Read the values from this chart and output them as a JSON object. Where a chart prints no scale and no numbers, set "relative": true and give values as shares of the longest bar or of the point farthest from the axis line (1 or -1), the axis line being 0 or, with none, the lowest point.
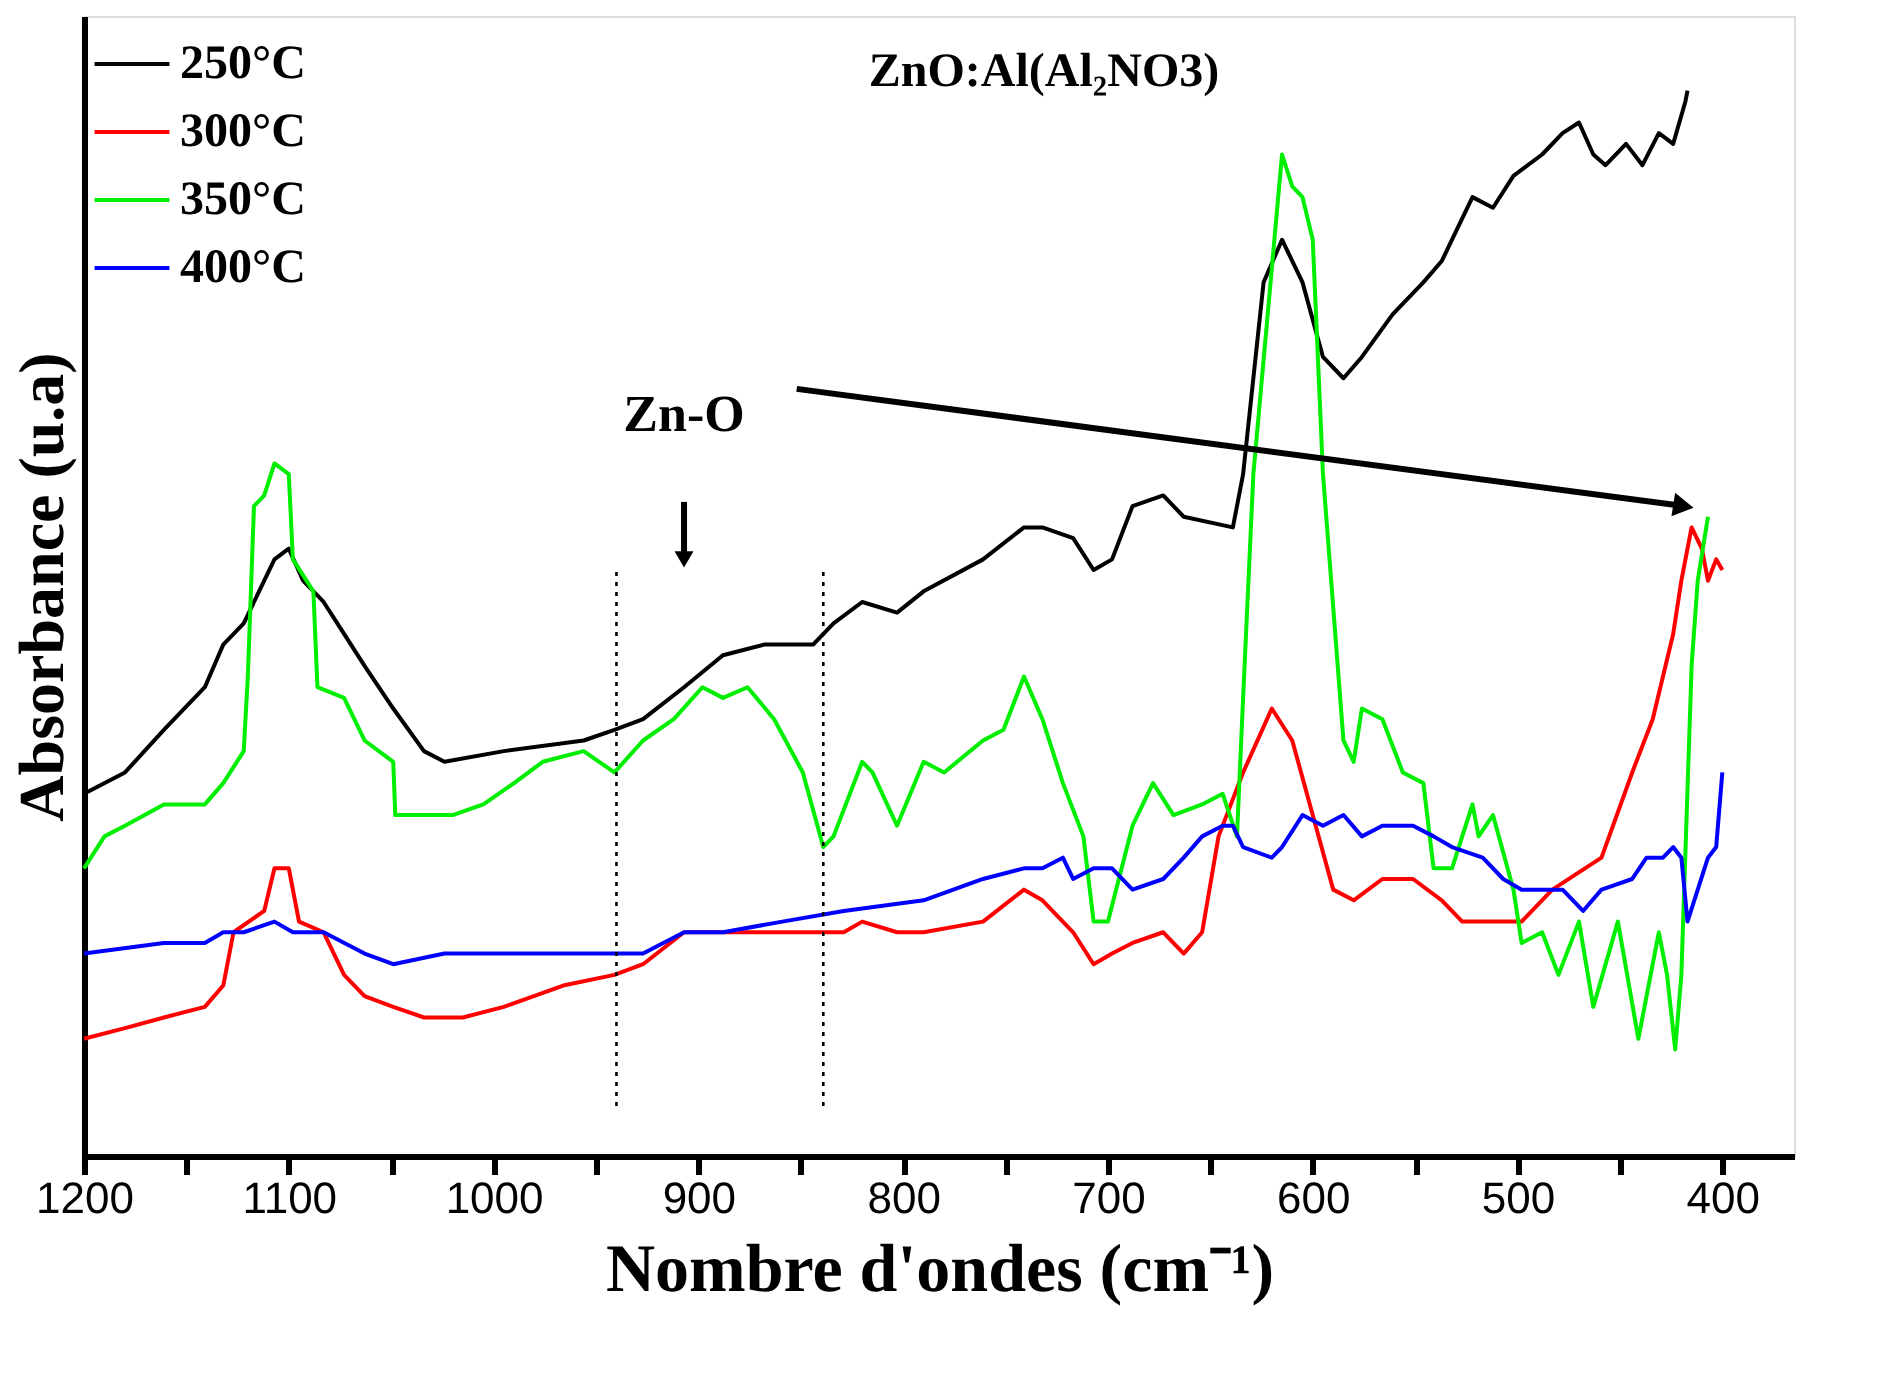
{
  "chart_data": {
    "type": "line",
    "title": "ZnO:Al(Al₂NO3)",
    "xlabel": "Nombre d'ondes (cm⁻¹)",
    "ylabel": "Absorbance (u.a)",
    "relative": true,
    "tick_labels": "x",
    "legend": "top left",
    "grid": false,
    "marker": "none",
    "line_style": "solid",
    "xlim": [
      1200,
      365
    ],
    "xticks": [
      1200,
      {
        "value": 1150,
        "label": null
      },
      1100,
      {
        "value": 1050,
        "label": null
      },
      1000,
      {
        "value": 950,
        "label": null
      },
      900,
      {
        "value": 850,
        "label": null
      },
      800,
      {
        "value": 750,
        "label": null
      },
      700,
      {
        "value": 650,
        "label": null
      },
      600,
      {
        "value": 550,
        "label": null
      },
      500,
      {
        "value": 450,
        "label": null
      },
      400
    ],
    "annotations": [
      {
        "text": "Zn-O",
        "x": 907,
        "y": 0.56
      }
    ],
    "ref_lines": [
      {
        "axis": "x",
        "value": 940,
        "label": null,
        "line_style": "dotted",
        "color": "#000000"
      },
      {
        "axis": "x",
        "value": 839,
        "label": null,
        "line_style": "dotted",
        "color": "#000000"
      }
    ],
    "series": [
      {
        "name": "250°C",
        "color": "#000000",
        "x": [
          1200,
          1180,
          1161,
          1141,
          1132,
          1122,
          1112,
          1107,
          1100,
          1093,
          1083,
          1073,
          1063,
          1049,
          1034,
          1024,
          995,
          956,
          941,
          927,
          907,
          888,
          868,
          844,
          834,
          820,
          803,
          790,
          761,
          741,
          732,
          717,
          707,
          698,
          688,
          673,
          663,
          639,
          634,
          629,
          624,
          615,
          605,
          595,
          585,
          576,
          561,
          546,
          537,
          527,
          522,
          512,
          502,
          488,
          478,
          470,
          463,
          457,
          447,
          439,
          431,
          424,
          418,
          417
        ],
        "values": [
          0.34,
          0.36,
          0.4,
          0.44,
          0.48,
          0.5,
          0.54,
          0.56,
          0.57,
          0.54,
          0.52,
          0.49,
          0.46,
          0.42,
          0.38,
          0.37,
          0.38,
          0.39,
          0.4,
          0.41,
          0.44,
          0.47,
          0.48,
          0.48,
          0.5,
          0.52,
          0.51,
          0.53,
          0.56,
          0.59,
          0.59,
          0.58,
          0.55,
          0.56,
          0.61,
          0.62,
          0.6,
          0.59,
          0.64,
          0.73,
          0.82,
          0.86,
          0.82,
          0.75,
          0.73,
          0.75,
          0.79,
          0.82,
          0.84,
          0.88,
          0.9,
          0.89,
          0.92,
          0.94,
          0.96,
          0.97,
          0.94,
          0.93,
          0.95,
          0.93,
          0.96,
          0.95,
          0.99,
          1.0
        ]
      },
      {
        "name": "300°C",
        "color": "#ff0000",
        "x": [
          1200,
          1180,
          1161,
          1141,
          1132,
          1127,
          1112,
          1107,
          1100,
          1095,
          1083,
          1073,
          1063,
          1049,
          1034,
          1015,
          995,
          966,
          941,
          927,
          907,
          888,
          859,
          844,
          829,
          820,
          803,
          790,
          761,
          741,
          732,
          717,
          707,
          698,
          688,
          673,
          663,
          654,
          646,
          634,
          620,
          610,
          600,
          590,
          580,
          566,
          551,
          537,
          527,
          512,
          498,
          483,
          459,
          444,
          434,
          424,
          420,
          415,
          410,
          407,
          403,
          400
        ],
        "values": [
          0.11,
          0.12,
          0.13,
          0.14,
          0.16,
          0.21,
          0.23,
          0.27,
          0.27,
          0.22,
          0.21,
          0.17,
          0.15,
          0.14,
          0.13,
          0.13,
          0.14,
          0.16,
          0.17,
          0.18,
          0.21,
          0.21,
          0.21,
          0.21,
          0.21,
          0.22,
          0.21,
          0.21,
          0.22,
          0.25,
          0.24,
          0.21,
          0.18,
          0.19,
          0.2,
          0.21,
          0.19,
          0.21,
          0.3,
          0.36,
          0.42,
          0.39,
          0.32,
          0.25,
          0.24,
          0.26,
          0.26,
          0.24,
          0.22,
          0.22,
          0.22,
          0.25,
          0.28,
          0.36,
          0.41,
          0.49,
          0.54,
          0.59,
          0.57,
          0.54,
          0.56,
          0.55
        ]
      },
      {
        "name": "350°C",
        "color": "#00ee00",
        "x": [
          1200,
          1190,
          1180,
          1161,
          1141,
          1132,
          1122,
          1120,
          1117,
          1112,
          1107,
          1100,
          1098,
          1088,
          1086,
          1073,
          1063,
          1049,
          1048,
          1034,
          1020,
          1005,
          990,
          976,
          956,
          941,
          927,
          912,
          898,
          888,
          876,
          863,
          849,
          839,
          834,
          820,
          815,
          803,
          790,
          780,
          761,
          751,
          741,
          732,
          722,
          712,
          707,
          704,
          700,
          688,
          678,
          668,
          654,
          644,
          637,
          634,
          629,
          615,
          610,
          605,
          600,
          595,
          585,
          580,
          576,
          566,
          556,
          546,
          541,
          532,
          522,
          519,
          512,
          502,
          498,
          488,
          480,
          470,
          463,
          451,
          441,
          431,
          427,
          423,
          420,
          415,
          412,
          407
        ],
        "values": [
          0.27,
          0.3,
          0.31,
          0.33,
          0.33,
          0.35,
          0.38,
          0.45,
          0.61,
          0.62,
          0.65,
          0.64,
          0.56,
          0.53,
          0.44,
          0.43,
          0.39,
          0.37,
          0.32,
          0.32,
          0.32,
          0.33,
          0.35,
          0.37,
          0.38,
          0.36,
          0.39,
          0.41,
          0.44,
          0.43,
          0.44,
          0.41,
          0.36,
          0.29,
          0.3,
          0.37,
          0.36,
          0.31,
          0.37,
          0.36,
          0.39,
          0.4,
          0.45,
          0.41,
          0.35,
          0.3,
          0.22,
          0.22,
          0.22,
          0.31,
          0.35,
          0.32,
          0.33,
          0.34,
          0.3,
          0.43,
          0.64,
          0.94,
          0.91,
          0.9,
          0.86,
          0.64,
          0.39,
          0.37,
          0.42,
          0.41,
          0.36,
          0.35,
          0.27,
          0.27,
          0.33,
          0.3,
          0.32,
          0.25,
          0.2,
          0.21,
          0.17,
          0.22,
          0.14,
          0.22,
          0.11,
          0.21,
          0.17,
          0.1,
          0.17,
          0.46,
          0.54,
          0.6
        ]
      },
      {
        "name": "400°C",
        "color": "#0000ff",
        "x": [
          1200,
          1161,
          1141,
          1132,
          1122,
          1107,
          1098,
          1083,
          1063,
          1049,
          1024,
          985,
          941,
          927,
          907,
          888,
          859,
          829,
          790,
          761,
          741,
          732,
          722,
          717,
          707,
          698,
          688,
          673,
          663,
          654,
          644,
          639,
          634,
          620,
          615,
          605,
          595,
          585,
          576,
          566,
          551,
          541,
          532,
          517,
          507,
          498,
          488,
          478,
          468,
          459,
          444,
          437,
          429,
          424,
          420,
          417,
          412,
          407,
          403,
          400
        ],
        "values": [
          0.19,
          0.2,
          0.2,
          0.21,
          0.21,
          0.22,
          0.21,
          0.21,
          0.19,
          0.18,
          0.19,
          0.19,
          0.19,
          0.19,
          0.21,
          0.21,
          0.22,
          0.23,
          0.24,
          0.26,
          0.27,
          0.27,
          0.28,
          0.26,
          0.27,
          0.27,
          0.25,
          0.26,
          0.28,
          0.3,
          0.31,
          0.31,
          0.29,
          0.28,
          0.29,
          0.32,
          0.31,
          0.32,
          0.3,
          0.31,
          0.31,
          0.3,
          0.29,
          0.28,
          0.26,
          0.25,
          0.25,
          0.25,
          0.23,
          0.25,
          0.26,
          0.28,
          0.28,
          0.29,
          0.28,
          0.22,
          0.25,
          0.28,
          0.29,
          0.36
        ]
      }
    ]
  }
}
